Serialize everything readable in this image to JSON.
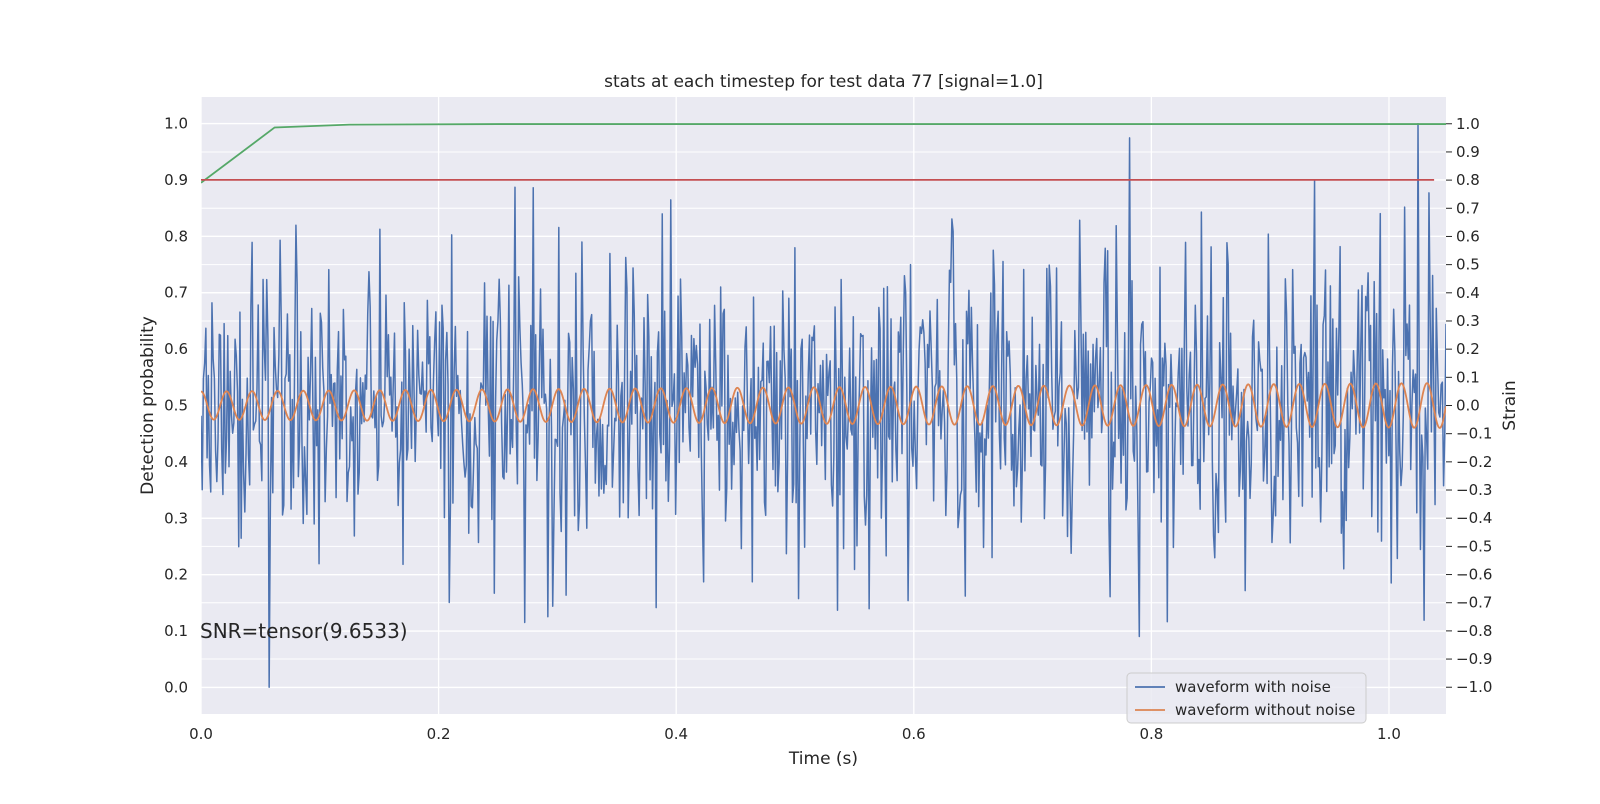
{
  "chart_data": {
    "type": "line",
    "title": "stats at each timestep for test data 77 [signal=1.0]",
    "xlabel": "Time (s)",
    "ylabel_left": "Detection probability",
    "ylabel_right": "Strain",
    "xlim": [
      0.0,
      1.048
    ],
    "ylim_left": [
      -0.047,
      1.047
    ],
    "ylim_right": [
      -1.095,
      1.095
    ],
    "x_ticks": [
      "0.0",
      "0.2",
      "0.4",
      "0.6",
      "0.8",
      "1.0"
    ],
    "y_ticks_left": [
      "0.0",
      "0.1",
      "0.2",
      "0.3",
      "0.4",
      "0.5",
      "0.6",
      "0.7",
      "0.8",
      "0.9",
      "1.0"
    ],
    "y_ticks_right": [
      "1.0",
      "0.9",
      "0.8",
      "0.7",
      "0.6",
      "0.5",
      "0.4",
      "0.3",
      "0.2",
      "0.1",
      "0.0",
      "−0.1",
      "−0.2",
      "−0.3",
      "−0.4",
      "−0.5",
      "−0.6",
      "−0.7",
      "−0.8",
      "−0.9",
      "−1.0"
    ],
    "grid": true,
    "annotation": "SNR=tensor(9.6533)",
    "legend": {
      "placement": "lower-right",
      "entries": [
        {
          "name": "waveform with noise",
          "color": "#4c72b0"
        },
        {
          "name": "waveform without noise",
          "color": "#dd8452"
        }
      ]
    },
    "colors": {
      "background": "#eaeaf2",
      "grid": "#ffffff",
      "noisy": "#4c72b0",
      "clean": "#dd8452",
      "detection": "#55a868",
      "threshold": "#c44e52"
    },
    "series": [
      {
        "name": "detection probability",
        "axis": "left",
        "color": "#55a868",
        "x": [
          0.0,
          0.062,
          0.125,
          0.25,
          0.5,
          0.75,
          1.0,
          1.048
        ],
        "y": [
          0.895,
          0.993,
          0.998,
          0.999,
          0.999,
          0.999,
          0.999,
          0.999
        ]
      },
      {
        "name": "threshold",
        "axis": "left",
        "color": "#c44e52",
        "x": [
          0.0,
          1.038
        ],
        "y": [
          0.9,
          0.9
        ]
      },
      {
        "name": "waveform without noise",
        "axis": "right",
        "color": "#dd8452",
        "x_range": [
          0.0,
          1.048
        ],
        "period": 0.0215,
        "amplitude_start": 0.05,
        "amplitude_end": 0.08
      },
      {
        "name": "waveform with noise",
        "axis": "right",
        "color": "#4c72b0",
        "x_range": [
          0.0,
          1.048
        ],
        "noise_std": 0.28,
        "peaks": [
          {
            "x": 0.057,
            "y": -1.0
          },
          {
            "x": 0.782,
            "y": 0.95
          },
          {
            "x": 0.79,
            "y": -0.82
          },
          {
            "x": 0.395,
            "y": 0.73
          },
          {
            "x": 0.937,
            "y": 0.8
          },
          {
            "x": 1.024,
            "y": 1.0
          },
          {
            "x": 0.272,
            "y": -0.77
          },
          {
            "x": 0.292,
            "y": -0.75
          }
        ]
      }
    ]
  }
}
